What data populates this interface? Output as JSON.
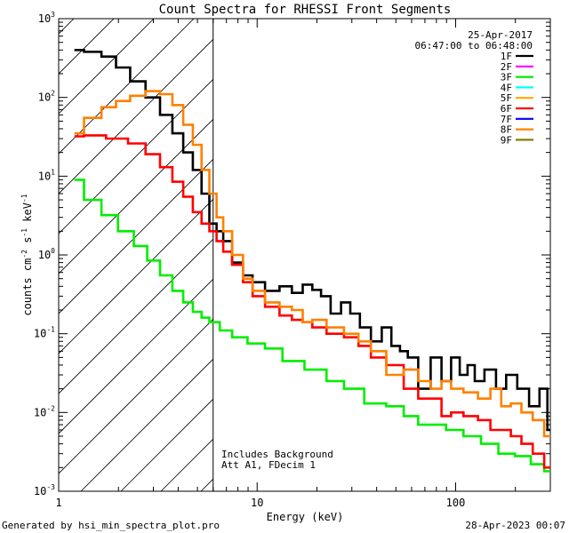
{
  "chart_data": {
    "type": "line",
    "title": "Count Spectra for RHESSI Front Segments",
    "xlabel": "Energy (keV)",
    "ylabel": "counts cm^-2 s^-1 keV^-1",
    "xscale": "log",
    "yscale": "log",
    "xlim": [
      1,
      300
    ],
    "ylim": [
      0.001,
      1000
    ],
    "x_ticks": [
      {
        "value": 1,
        "label": "1"
      },
      {
        "value": 10,
        "label": "10"
      },
      {
        "value": 100,
        "label": "100"
      }
    ],
    "y_ticks": [
      {
        "value": 1000,
        "mant": "10",
        "exp": "3"
      },
      {
        "value": 100,
        "mant": "10",
        "exp": "2"
      },
      {
        "value": 10,
        "mant": "10",
        "exp": "1"
      },
      {
        "value": 1,
        "mant": "10",
        "exp": "0"
      },
      {
        "value": 0.1,
        "mant": "10",
        "exp": "-1"
      },
      {
        "value": 0.01,
        "mant": "10",
        "exp": "-2"
      },
      {
        "value": 0.001,
        "mant": "10",
        "exp": "-3"
      }
    ],
    "date_label": "25-Apr-2017",
    "time_range_label": "06:47:00 to 06:48:00",
    "hatched_region_xlim": [
      1,
      6
    ],
    "vertical_line_x": 6,
    "annotations": [
      "Includes Background",
      "Att A1, FDecim 1"
    ],
    "legend": [
      {
        "label": "1F",
        "color": "#000000"
      },
      {
        "label": "2F",
        "color": "#ff00ff"
      },
      {
        "label": "3F",
        "color": "#00ee00"
      },
      {
        "label": "4F",
        "color": "#00ffff"
      },
      {
        "label": "5F",
        "color": "#ffaa00"
      },
      {
        "label": "6F",
        "color": "#ff0000"
      },
      {
        "label": "7F",
        "color": "#0000ff"
      },
      {
        "label": "8F",
        "color": "#ff8000"
      },
      {
        "label": "9F",
        "color": "#808000"
      }
    ],
    "series": [
      {
        "name": "1F",
        "color": "#000000",
        "x": [
          1.2,
          1.5,
          1.8,
          2.1,
          2.5,
          3.0,
          3.5,
          4.0,
          4.5,
          5.0,
          5.5,
          6.0,
          6.5,
          7.0,
          8.0,
          9.0,
          10,
          12,
          14,
          16,
          18,
          20,
          22,
          25,
          28,
          31,
          35,
          40,
          45,
          50,
          55,
          60,
          70,
          80,
          90,
          100,
          110,
          120,
          130,
          150,
          170,
          190,
          220,
          250,
          280,
          300
        ],
        "y": [
          400,
          380,
          330,
          240,
          160,
          100,
          60,
          35,
          20,
          12,
          6,
          2.5,
          2.0,
          1.5,
          0.8,
          0.55,
          0.45,
          0.35,
          0.4,
          0.33,
          0.42,
          0.36,
          0.3,
          0.18,
          0.25,
          0.18,
          0.12,
          0.08,
          0.12,
          0.07,
          0.06,
          0.05,
          0.02,
          0.05,
          0.025,
          0.05,
          0.03,
          0.04,
          0.025,
          0.035,
          0.02,
          0.03,
          0.02,
          0.012,
          0.02,
          0.006
        ]
      },
      {
        "name": "3F",
        "color": "#00ee00",
        "x": [
          1.2,
          1.5,
          1.8,
          2.2,
          2.6,
          3.0,
          3.5,
          4.0,
          4.5,
          5.0,
          5.5,
          6.0,
          7.0,
          8.0,
          10,
          12,
          15,
          20,
          25,
          30,
          40,
          50,
          60,
          70,
          80,
          100,
          120,
          150,
          180,
          220,
          260,
          300
        ],
        "y": [
          9,
          5,
          3.2,
          2,
          1.3,
          0.85,
          0.55,
          0.35,
          0.25,
          0.19,
          0.16,
          0.14,
          0.11,
          0.09,
          0.075,
          0.065,
          0.045,
          0.035,
          0.025,
          0.02,
          0.013,
          0.012,
          0.009,
          0.007,
          0.007,
          0.006,
          0.005,
          0.004,
          0.003,
          0.0028,
          0.0022,
          0.0018
        ]
      },
      {
        "name": "6F",
        "color": "#ff0000",
        "x": [
          1.2,
          1.5,
          2.0,
          2.5,
          3.0,
          3.5,
          4.0,
          4.5,
          5.0,
          5.5,
          6.0,
          6.5,
          7.0,
          8.0,
          9.0,
          10,
          12,
          14,
          16,
          18,
          20,
          25,
          30,
          35,
          40,
          50,
          60,
          70,
          80,
          90,
          100,
          120,
          140,
          160,
          180,
          200,
          230,
          260,
          300
        ],
        "y": [
          32,
          33,
          30,
          26,
          19,
          13,
          8.5,
          5.5,
          3.5,
          2.5,
          2.0,
          1.5,
          1.1,
          0.75,
          0.45,
          0.3,
          0.22,
          0.17,
          0.15,
          0.14,
          0.12,
          0.1,
          0.09,
          0.07,
          0.05,
          0.04,
          0.02,
          0.015,
          0.015,
          0.009,
          0.01,
          0.009,
          0.008,
          0.006,
          0.006,
          0.005,
          0.004,
          0.003,
          0.002
        ]
      },
      {
        "name": "8F",
        "color": "#ff8000",
        "x": [
          1.2,
          1.5,
          1.8,
          2.1,
          2.5,
          3.0,
          3.5,
          4.0,
          4.5,
          5.0,
          5.5,
          6.0,
          6.5,
          7.0,
          8.0,
          9.0,
          10,
          12,
          14,
          16,
          18,
          20,
          25,
          30,
          35,
          40,
          50,
          60,
          70,
          80,
          90,
          100,
          120,
          140,
          160,
          180,
          200,
          230,
          260,
          300
        ],
        "y": [
          35,
          55,
          75,
          90,
          105,
          120,
          110,
          80,
          45,
          25,
          12,
          6,
          3.0,
          2.0,
          1.0,
          0.5,
          0.35,
          0.25,
          0.22,
          0.2,
          0.14,
          0.15,
          0.12,
          0.1,
          0.08,
          0.06,
          0.03,
          0.035,
          0.025,
          0.02,
          0.025,
          0.02,
          0.018,
          0.015,
          0.02,
          0.012,
          0.013,
          0.01,
          0.008,
          0.005
        ]
      }
    ]
  },
  "footer": {
    "generated_by": "Generated by hsi_min_spectra_plot.pro",
    "date": "28-Apr-2023 00:07"
  }
}
